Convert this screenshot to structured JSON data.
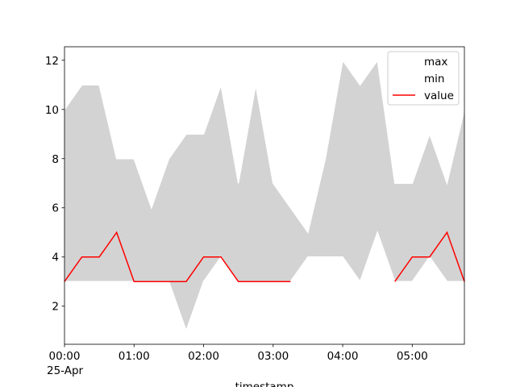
{
  "chart_data": {
    "type": "line",
    "x": [
      "00:00",
      "00:15",
      "00:30",
      "00:45",
      "01:00",
      "01:15",
      "01:30",
      "01:45",
      "02:00",
      "02:15",
      "02:30",
      "02:45",
      "03:00",
      "03:15",
      "03:30",
      "03:45",
      "04:00",
      "04:15",
      "04:30",
      "04:45",
      "05:00",
      "05:15",
      "05:30",
      "05:45"
    ],
    "xlim": [
      "00:00",
      "05:45"
    ],
    "xticks": [
      "00:00",
      "01:00",
      "02:00",
      "03:00",
      "04:00",
      "05:00"
    ],
    "xtick_date": "25-Apr",
    "xlabel": "timestamp",
    "series": [
      {
        "name": "max",
        "color": "#ffffff",
        "values": [
          10,
          11,
          11,
          8,
          8,
          6,
          8,
          9,
          9,
          11,
          7,
          11,
          7,
          6,
          5,
          8,
          12,
          11,
          12,
          7,
          7,
          9,
          7,
          10
        ]
      },
      {
        "name": "min",
        "color": "#ffffff",
        "values": [
          3,
          3,
          3,
          3,
          3,
          3,
          3,
          1,
          3,
          4,
          3,
          3,
          3,
          3,
          4,
          4,
          4,
          3,
          5,
          3,
          3,
          4,
          3,
          3
        ]
      },
      {
        "name": "value",
        "color": "#ff0000",
        "values": [
          3,
          4,
          4,
          5,
          3,
          3,
          3,
          3,
          4,
          4,
          3,
          3,
          3,
          3,
          null,
          null,
          null,
          null,
          null,
          3,
          4,
          4,
          5,
          3
        ]
      }
    ],
    "fill_color": "#d3d3d3",
    "ylim": [
      0.45,
      12.55
    ],
    "yticks": [
      2,
      4,
      6,
      8,
      10,
      12
    ],
    "legend": "upper right"
  }
}
